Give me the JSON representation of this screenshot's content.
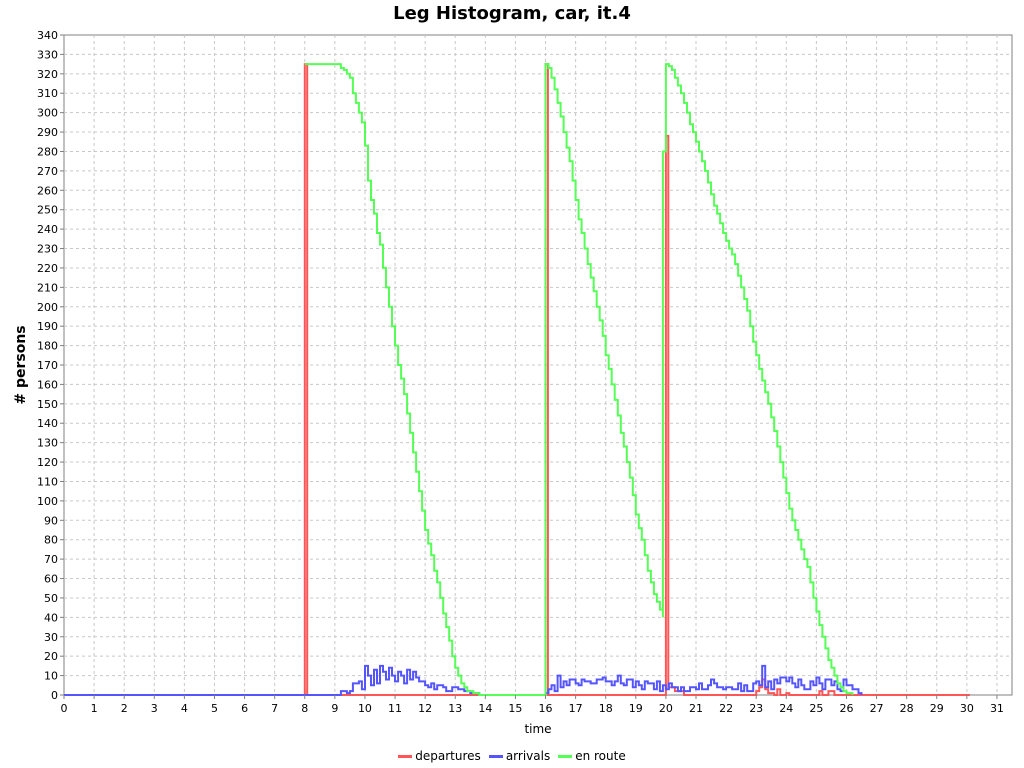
{
  "chart_data": {
    "type": "line",
    "title": "Leg Histogram, car, it.4",
    "xlabel": "time",
    "ylabel": "# persons",
    "xlim": [
      0,
      31.5
    ],
    "ylim": [
      0,
      340
    ],
    "x_ticks": [
      0,
      1,
      2,
      3,
      4,
      5,
      6,
      7,
      8,
      9,
      10,
      11,
      12,
      13,
      14,
      15,
      16,
      17,
      18,
      19,
      20,
      21,
      22,
      23,
      24,
      25,
      26,
      27,
      28,
      29,
      30,
      31
    ],
    "y_ticks": [
      0,
      10,
      20,
      30,
      40,
      50,
      60,
      70,
      80,
      90,
      100,
      110,
      120,
      130,
      140,
      150,
      160,
      170,
      180,
      190,
      200,
      210,
      220,
      230,
      240,
      250,
      260,
      270,
      280,
      290,
      300,
      310,
      320,
      330,
      340
    ],
    "grid": true,
    "legend_position": "bottom",
    "series": [
      {
        "name": "departures",
        "color": "#ff5555",
        "points": [
          [
            0,
            0
          ],
          [
            8.0,
            0
          ],
          [
            8.0,
            325
          ],
          [
            8.08,
            325
          ],
          [
            8.08,
            0
          ],
          [
            16.0,
            0
          ],
          [
            16.0,
            325
          ],
          [
            16.08,
            325
          ],
          [
            16.08,
            0
          ],
          [
            20.0,
            0
          ],
          [
            20.0,
            288
          ],
          [
            20.08,
            288
          ],
          [
            20.08,
            4
          ],
          [
            20.3,
            2
          ],
          [
            20.6,
            0
          ],
          [
            22.9,
            0
          ],
          [
            23.0,
            2
          ],
          [
            23.1,
            4
          ],
          [
            23.2,
            8
          ],
          [
            23.3,
            3
          ],
          [
            23.4,
            1
          ],
          [
            23.6,
            0
          ],
          [
            23.7,
            3
          ],
          [
            23.8,
            0
          ],
          [
            24.0,
            1
          ],
          [
            24.1,
            0
          ],
          [
            25.0,
            0
          ],
          [
            25.1,
            2
          ],
          [
            25.2,
            0
          ],
          [
            25.4,
            2
          ],
          [
            25.5,
            2
          ],
          [
            25.6,
            0
          ],
          [
            30.1,
            0
          ]
        ]
      },
      {
        "name": "arrivals",
        "color": "#5555ff",
        "points": [
          [
            0,
            0
          ],
          [
            9.2,
            0
          ],
          [
            9.2,
            2
          ],
          [
            9.4,
            1
          ],
          [
            9.5,
            2
          ],
          [
            9.6,
            6
          ],
          [
            9.8,
            7
          ],
          [
            9.9,
            3
          ],
          [
            10.0,
            15
          ],
          [
            10.1,
            10
          ],
          [
            10.2,
            5
          ],
          [
            10.3,
            13
          ],
          [
            10.4,
            6
          ],
          [
            10.5,
            15
          ],
          [
            10.6,
            12
          ],
          [
            10.7,
            8
          ],
          [
            10.8,
            14
          ],
          [
            10.9,
            10
          ],
          [
            11.0,
            7
          ],
          [
            11.1,
            12
          ],
          [
            11.2,
            10
          ],
          [
            11.3,
            6
          ],
          [
            11.4,
            13
          ],
          [
            11.5,
            8
          ],
          [
            11.6,
            12
          ],
          [
            11.7,
            9
          ],
          [
            11.8,
            7
          ],
          [
            12.0,
            5
          ],
          [
            12.1,
            4
          ],
          [
            12.2,
            6
          ],
          [
            12.3,
            3
          ],
          [
            12.4,
            5
          ],
          [
            12.6,
            4
          ],
          [
            12.7,
            2
          ],
          [
            12.9,
            4
          ],
          [
            13.1,
            3
          ],
          [
            13.3,
            2
          ],
          [
            13.5,
            1
          ],
          [
            13.8,
            0
          ],
          [
            16.0,
            0
          ],
          [
            16.0,
            1
          ],
          [
            16.1,
            3
          ],
          [
            16.2,
            5
          ],
          [
            16.3,
            2
          ],
          [
            16.4,
            10
          ],
          [
            16.5,
            4
          ],
          [
            16.6,
            7
          ],
          [
            16.7,
            5
          ],
          [
            16.8,
            8
          ],
          [
            17.0,
            6
          ],
          [
            17.1,
            5
          ],
          [
            17.2,
            8
          ],
          [
            17.3,
            7
          ],
          [
            17.5,
            6
          ],
          [
            17.7,
            8
          ],
          [
            17.9,
            9
          ],
          [
            18.0,
            7
          ],
          [
            18.2,
            5
          ],
          [
            18.3,
            7
          ],
          [
            18.4,
            10
          ],
          [
            18.5,
            6
          ],
          [
            18.6,
            5
          ],
          [
            18.7,
            8
          ],
          [
            18.9,
            4
          ],
          [
            19.0,
            7
          ],
          [
            19.1,
            5
          ],
          [
            19.2,
            3
          ],
          [
            19.3,
            7
          ],
          [
            19.4,
            6
          ],
          [
            19.6,
            3
          ],
          [
            19.7,
            7
          ],
          [
            19.8,
            2
          ],
          [
            19.9,
            5
          ],
          [
            20.0,
            3
          ],
          [
            20.1,
            6
          ],
          [
            20.2,
            4
          ],
          [
            20.4,
            2
          ],
          [
            20.5,
            4
          ],
          [
            20.6,
            2
          ],
          [
            20.8,
            4
          ],
          [
            21.0,
            3
          ],
          [
            21.1,
            6
          ],
          [
            21.2,
            3
          ],
          [
            21.4,
            5
          ],
          [
            21.5,
            8
          ],
          [
            21.6,
            6
          ],
          [
            21.7,
            4
          ],
          [
            21.9,
            3
          ],
          [
            22.0,
            4
          ],
          [
            22.2,
            3
          ],
          [
            22.4,
            6
          ],
          [
            22.5,
            2
          ],
          [
            22.6,
            5
          ],
          [
            22.7,
            2
          ],
          [
            22.9,
            6
          ],
          [
            23.0,
            7
          ],
          [
            23.1,
            5
          ],
          [
            23.2,
            15
          ],
          [
            23.3,
            4
          ],
          [
            23.4,
            7
          ],
          [
            23.5,
            3
          ],
          [
            23.6,
            8
          ],
          [
            23.7,
            6
          ],
          [
            23.8,
            9
          ],
          [
            24.0,
            7
          ],
          [
            24.1,
            9
          ],
          [
            24.2,
            6
          ],
          [
            24.3,
            4
          ],
          [
            24.4,
            8
          ],
          [
            24.5,
            5
          ],
          [
            24.6,
            3
          ],
          [
            24.8,
            7
          ],
          [
            24.9,
            5
          ],
          [
            25.0,
            9
          ],
          [
            25.1,
            6
          ],
          [
            25.2,
            3
          ],
          [
            25.3,
            8
          ],
          [
            25.5,
            5
          ],
          [
            25.6,
            7
          ],
          [
            25.7,
            3
          ],
          [
            25.8,
            2
          ],
          [
            25.9,
            8
          ],
          [
            26.0,
            5
          ],
          [
            26.2,
            3
          ],
          [
            26.4,
            1
          ],
          [
            26.5,
            0
          ]
        ]
      },
      {
        "name": "en route",
        "color": "#55ff55",
        "points": [
          [
            8.0,
            325
          ],
          [
            9.1,
            325
          ],
          [
            9.2,
            323
          ],
          [
            9.3,
            322
          ],
          [
            9.4,
            320
          ],
          [
            9.5,
            318
          ],
          [
            9.6,
            310
          ],
          [
            9.7,
            305
          ],
          [
            9.8,
            300
          ],
          [
            9.9,
            295
          ],
          [
            10.0,
            283
          ],
          [
            10.1,
            265
          ],
          [
            10.2,
            255
          ],
          [
            10.3,
            248
          ],
          [
            10.4,
            238
          ],
          [
            10.5,
            232
          ],
          [
            10.6,
            220
          ],
          [
            10.7,
            210
          ],
          [
            10.8,
            200
          ],
          [
            10.9,
            190
          ],
          [
            11.0,
            180
          ],
          [
            11.1,
            170
          ],
          [
            11.2,
            163
          ],
          [
            11.3,
            155
          ],
          [
            11.4,
            145
          ],
          [
            11.5,
            135
          ],
          [
            11.6,
            125
          ],
          [
            11.7,
            115
          ],
          [
            11.8,
            105
          ],
          [
            11.9,
            95
          ],
          [
            12.0,
            85
          ],
          [
            12.1,
            78
          ],
          [
            12.2,
            72
          ],
          [
            12.3,
            64
          ],
          [
            12.4,
            58
          ],
          [
            12.5,
            50
          ],
          [
            12.6,
            42
          ],
          [
            12.7,
            35
          ],
          [
            12.8,
            28
          ],
          [
            12.9,
            20
          ],
          [
            13.0,
            14
          ],
          [
            13.1,
            10
          ],
          [
            13.2,
            6
          ],
          [
            13.3,
            4
          ],
          [
            13.4,
            2
          ],
          [
            13.6,
            1
          ],
          [
            13.8,
            0
          ],
          [
            16.0,
            0
          ],
          [
            16.0,
            325
          ],
          [
            16.1,
            323
          ],
          [
            16.2,
            318
          ],
          [
            16.3,
            312
          ],
          [
            16.4,
            305
          ],
          [
            16.5,
            298
          ],
          [
            16.6,
            290
          ],
          [
            16.7,
            282
          ],
          [
            16.8,
            275
          ],
          [
            16.9,
            265
          ],
          [
            17.0,
            255
          ],
          [
            17.1,
            245
          ],
          [
            17.2,
            238
          ],
          [
            17.3,
            230
          ],
          [
            17.4,
            222
          ],
          [
            17.5,
            215
          ],
          [
            17.6,
            208
          ],
          [
            17.7,
            200
          ],
          [
            17.8,
            193
          ],
          [
            17.9,
            185
          ],
          [
            18.0,
            175
          ],
          [
            18.1,
            168
          ],
          [
            18.2,
            160
          ],
          [
            18.3,
            152
          ],
          [
            18.4,
            144
          ],
          [
            18.5,
            135
          ],
          [
            18.6,
            128
          ],
          [
            18.7,
            120
          ],
          [
            18.8,
            112
          ],
          [
            18.9,
            103
          ],
          [
            19.0,
            93
          ],
          [
            19.1,
            86
          ],
          [
            19.2,
            80
          ],
          [
            19.3,
            72
          ],
          [
            19.4,
            64
          ],
          [
            19.5,
            58
          ],
          [
            19.6,
            52
          ],
          [
            19.7,
            48
          ],
          [
            19.8,
            44
          ],
          [
            19.9,
            40
          ],
          [
            19.9,
            280
          ],
          [
            20.0,
            325
          ],
          [
            20.1,
            324
          ],
          [
            20.2,
            322
          ],
          [
            20.3,
            318
          ],
          [
            20.4,
            314
          ],
          [
            20.5,
            310
          ],
          [
            20.6,
            305
          ],
          [
            20.7,
            300
          ],
          [
            20.8,
            294
          ],
          [
            20.9,
            290
          ],
          [
            21.0,
            285
          ],
          [
            21.1,
            280
          ],
          [
            21.2,
            275
          ],
          [
            21.3,
            270
          ],
          [
            21.4,
            264
          ],
          [
            21.5,
            258
          ],
          [
            21.6,
            252
          ],
          [
            21.7,
            248
          ],
          [
            21.8,
            243
          ],
          [
            21.9,
            238
          ],
          [
            22.0,
            234
          ],
          [
            22.1,
            230
          ],
          [
            22.2,
            227
          ],
          [
            22.3,
            222
          ],
          [
            22.4,
            216
          ],
          [
            22.5,
            210
          ],
          [
            22.6,
            204
          ],
          [
            22.7,
            198
          ],
          [
            22.8,
            190
          ],
          [
            22.9,
            182
          ],
          [
            23.0,
            175
          ],
          [
            23.1,
            168
          ],
          [
            23.2,
            162
          ],
          [
            23.3,
            156
          ],
          [
            23.4,
            150
          ],
          [
            23.5,
            143
          ],
          [
            23.6,
            136
          ],
          [
            23.7,
            128
          ],
          [
            23.8,
            120
          ],
          [
            23.9,
            112
          ],
          [
            24.0,
            104
          ],
          [
            24.1,
            96
          ],
          [
            24.2,
            90
          ],
          [
            24.3,
            85
          ],
          [
            24.4,
            80
          ],
          [
            24.5,
            75
          ],
          [
            24.6,
            70
          ],
          [
            24.7,
            66
          ],
          [
            24.8,
            58
          ],
          [
            24.9,
            50
          ],
          [
            25.0,
            43
          ],
          [
            25.1,
            36
          ],
          [
            25.2,
            30
          ],
          [
            25.3,
            24
          ],
          [
            25.4,
            18
          ],
          [
            25.5,
            14
          ],
          [
            25.6,
            10
          ],
          [
            25.7,
            6
          ],
          [
            25.8,
            4
          ],
          [
            25.9,
            2
          ],
          [
            26.0,
            1
          ],
          [
            26.2,
            0
          ]
        ]
      }
    ]
  }
}
